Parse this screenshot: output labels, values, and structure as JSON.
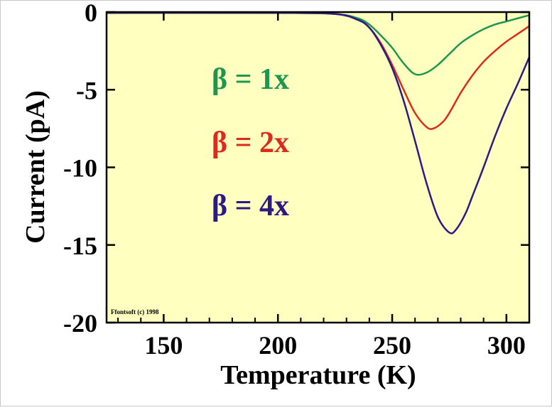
{
  "chart_data": {
    "type": "line",
    "xlabel": "Temperature (K)",
    "ylabel": "Current (pA)",
    "xlim": [
      125,
      310
    ],
    "ylim": [
      -20,
      0
    ],
    "xticks": [
      150,
      200,
      250,
      300
    ],
    "yticks": [
      0,
      -5,
      -10,
      -15,
      -20
    ],
    "xtick_labels": [
      "150",
      "200",
      "250",
      "300"
    ],
    "ytick_labels": [
      "0",
      "-5",
      "-10",
      "-15",
      "-20"
    ],
    "grid": false,
    "background_color": "#ffffc0",
    "watermark": "Ffontsoft (c) 1998",
    "series": [
      {
        "label": "β = 1x",
        "color": "#1e9650",
        "points": [
          [
            125,
            -0.05
          ],
          [
            200,
            -0.05
          ],
          [
            225,
            -0.12
          ],
          [
            235,
            -0.4
          ],
          [
            240,
            -0.8
          ],
          [
            245,
            -1.5
          ],
          [
            250,
            -2.3
          ],
          [
            255,
            -3.3
          ],
          [
            260,
            -4.0
          ],
          [
            265,
            -3.9
          ],
          [
            270,
            -3.4
          ],
          [
            275,
            -2.7
          ],
          [
            280,
            -2.0
          ],
          [
            285,
            -1.5
          ],
          [
            290,
            -1.1
          ],
          [
            295,
            -0.8
          ],
          [
            300,
            -0.6
          ],
          [
            305,
            -0.4
          ],
          [
            310,
            -0.2
          ]
        ]
      },
      {
        "label": "β = 2x",
        "color": "#dd2a1e",
        "points": [
          [
            125,
            -0.05
          ],
          [
            200,
            -0.05
          ],
          [
            225,
            -0.12
          ],
          [
            235,
            -0.5
          ],
          [
            240,
            -1.0
          ],
          [
            245,
            -2.0
          ],
          [
            250,
            -3.4
          ],
          [
            255,
            -5.0
          ],
          [
            260,
            -6.5
          ],
          [
            265,
            -7.4
          ],
          [
            268,
            -7.5
          ],
          [
            272,
            -7.1
          ],
          [
            275,
            -6.5
          ],
          [
            280,
            -5.2
          ],
          [
            285,
            -4.1
          ],
          [
            290,
            -3.2
          ],
          [
            295,
            -2.5
          ],
          [
            300,
            -1.9
          ],
          [
            305,
            -1.4
          ],
          [
            310,
            -0.9
          ]
        ]
      },
      {
        "label": "β = 4x",
        "color": "#2b1a86",
        "points": [
          [
            125,
            -0.05
          ],
          [
            200,
            -0.05
          ],
          [
            225,
            -0.12
          ],
          [
            235,
            -0.5
          ],
          [
            240,
            -1.0
          ],
          [
            245,
            -2.1
          ],
          [
            250,
            -3.6
          ],
          [
            255,
            -5.7
          ],
          [
            260,
            -8.3
          ],
          [
            265,
            -11.0
          ],
          [
            270,
            -13.2
          ],
          [
            275,
            -14.2
          ],
          [
            278,
            -14.0
          ],
          [
            282,
            -13.0
          ],
          [
            285,
            -11.9
          ],
          [
            290,
            -10.0
          ],
          [
            295,
            -8.0
          ],
          [
            300,
            -6.2
          ],
          [
            305,
            -4.6
          ],
          [
            310,
            -2.9
          ]
        ]
      }
    ]
  }
}
